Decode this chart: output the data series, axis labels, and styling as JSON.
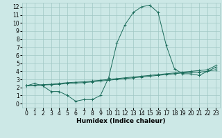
{
  "xlabel": "Humidex (Indice chaleur)",
  "ylabel": "",
  "xlim": [
    -0.5,
    23.5
  ],
  "ylim": [
    -0.5,
    12.5
  ],
  "xticks": [
    0,
    1,
    2,
    3,
    4,
    5,
    6,
    7,
    8,
    9,
    10,
    11,
    12,
    13,
    14,
    15,
    16,
    17,
    18,
    19,
    20,
    21,
    22,
    23
  ],
  "yticks": [
    0,
    1,
    2,
    3,
    4,
    5,
    6,
    7,
    8,
    9,
    10,
    11,
    12
  ],
  "background_color": "#cce8e6",
  "grid_color": "#a0c8c4",
  "line_color": "#1a6b5a",
  "line1_x": [
    0,
    1,
    2,
    3,
    4,
    5,
    6,
    7,
    8,
    9,
    10,
    11,
    12,
    13,
    14,
    15,
    16,
    17,
    18,
    19,
    20,
    21,
    22,
    23
  ],
  "line1_y": [
    2.2,
    2.5,
    2.2,
    1.5,
    1.5,
    1.0,
    0.3,
    0.5,
    0.5,
    1.0,
    3.2,
    7.5,
    9.8,
    11.3,
    12.0,
    12.2,
    11.3,
    7.2,
    4.3,
    3.7,
    3.7,
    3.5,
    4.0,
    4.2
  ],
  "line2_x": [
    0,
    1,
    2,
    3,
    4,
    5,
    6,
    7,
    8,
    9,
    10,
    11,
    12,
    13,
    14,
    15,
    16,
    17,
    18,
    19,
    20,
    21,
    22,
    23
  ],
  "line2_y": [
    2.2,
    2.3,
    2.35,
    2.4,
    2.5,
    2.6,
    2.65,
    2.7,
    2.8,
    2.9,
    3.0,
    3.1,
    3.2,
    3.3,
    3.4,
    3.5,
    3.6,
    3.7,
    3.8,
    3.9,
    4.0,
    4.1,
    4.2,
    4.7
  ],
  "line3_x": [
    0,
    1,
    2,
    3,
    4,
    5,
    6,
    7,
    8,
    9,
    10,
    11,
    12,
    13,
    14,
    15,
    16,
    17,
    18,
    19,
    20,
    21,
    22,
    23
  ],
  "line3_y": [
    2.2,
    2.25,
    2.3,
    2.35,
    2.4,
    2.5,
    2.55,
    2.6,
    2.7,
    2.8,
    2.9,
    3.0,
    3.1,
    3.2,
    3.3,
    3.4,
    3.5,
    3.6,
    3.7,
    3.8,
    3.85,
    3.9,
    4.0,
    4.5
  ],
  "tick_fontsize": 5.5,
  "xlabel_fontsize": 6.5,
  "fig_width": 3.2,
  "fig_height": 2.0,
  "dpi": 100
}
